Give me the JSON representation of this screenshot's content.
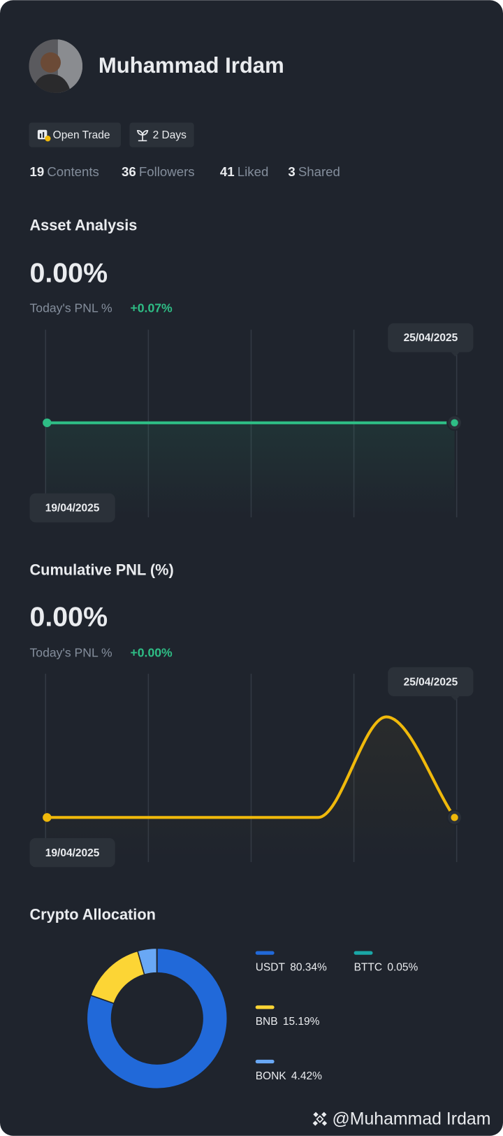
{
  "profile": {
    "name": "Muhammad Irdam",
    "badges": [
      "Open Trade",
      "2 Days"
    ],
    "stats": [
      {
        "count": 19,
        "label": "Contents"
      },
      {
        "count": 36,
        "label": "Followers"
      },
      {
        "count": 41,
        "label": "Liked"
      },
      {
        "count": 3,
        "label": "Shared"
      }
    ]
  },
  "asset_analysis": {
    "title": "Asset Analysis",
    "value": "0.00%",
    "pnl_label": "Today's PNL %",
    "pnl_change": "+0.07%",
    "chart": {
      "type": "line",
      "categories": [
        "19/04/2025",
        null,
        null,
        null,
        null,
        null,
        "25/04/2025"
      ],
      "values": [
        0,
        0,
        0,
        0,
        0,
        0,
        0
      ],
      "color": "#2ebd85",
      "ylim": [
        -1,
        1
      ]
    }
  },
  "cumulative_pnl": {
    "title": "Cumulative PNL (%)",
    "value": "0.00%",
    "pnl_label": "Today's PNL %",
    "pnl_change": "+0.00%",
    "chart": {
      "type": "line",
      "categories": [
        "19/04/2025",
        null,
        null,
        null,
        null,
        null,
        "25/04/2025"
      ],
      "values": [
        0,
        0,
        0,
        0,
        0,
        0.07,
        0
      ],
      "color": "#f0b90b",
      "ylim": [
        -0.03,
        0.1
      ]
    }
  },
  "crypto_allocation": {
    "title": "Crypto Allocation",
    "chart": {
      "type": "pie",
      "categories": [
        "USDT",
        "BNB",
        "BONK",
        "BTTC"
      ],
      "values": [
        80.34,
        15.19,
        4.42,
        0.05
      ],
      "value_labels": [
        "80.34%",
        "15.19%",
        "4.42%",
        "0.05%"
      ],
      "colors": [
        "#2169d9",
        "#fcd535",
        "#69a8f5",
        "#1aa7a7"
      ]
    }
  },
  "footer": {
    "watermark": "@Muhammad Irdam"
  }
}
